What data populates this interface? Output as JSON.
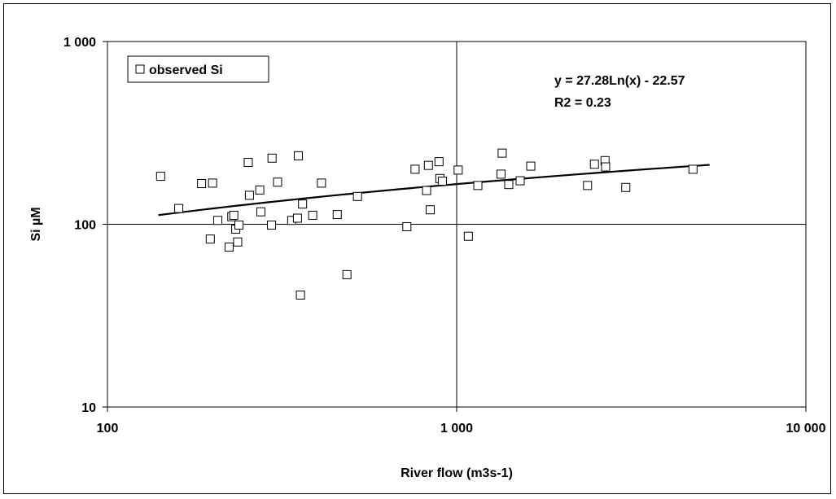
{
  "chart_data": {
    "type": "scatter",
    "title": "",
    "xlabel": "River flow  (m3s-1)",
    "ylabel": "Si  µM",
    "x_scale": "log",
    "y_scale": "log",
    "xlim": [
      100,
      10000
    ],
    "ylim": [
      10,
      1000
    ],
    "x_ticks": [
      100,
      1000,
      10000
    ],
    "y_ticks": [
      10,
      100,
      1000
    ],
    "x_tick_labels": [
      "100",
      "1 000",
      "10 000"
    ],
    "y_tick_labels": [
      "10",
      "100",
      "1 000"
    ],
    "grid": "major",
    "legend_position": "top-left",
    "legend": [
      {
        "label": "observed Si",
        "marker": "open-square"
      }
    ],
    "annotation": {
      "equation": "y = 27.28Ln(x) - 22.57",
      "r2": "R2 = 0.23"
    },
    "trendline": {
      "type": "logarithmic",
      "a": 27.28,
      "b": -22.57,
      "x_start": 140,
      "x_end": 5300,
      "color": "#000000"
    },
    "series": [
      {
        "name": "observed Si",
        "marker": "open-square",
        "color": "#000000",
        "points": [
          [
            142,
            183
          ],
          [
            160,
            122
          ],
          [
            186,
            167
          ],
          [
            197,
            83
          ],
          [
            200,
            168
          ],
          [
            207,
            105
          ],
          [
            223,
            75
          ],
          [
            227,
            110
          ],
          [
            230,
            112
          ],
          [
            233,
            94
          ],
          [
            236,
            80
          ],
          [
            238,
            99
          ],
          [
            253,
            218
          ],
          [
            255,
            144
          ],
          [
            273,
            154
          ],
          [
            275,
            117
          ],
          [
            295,
            99
          ],
          [
            296,
            230
          ],
          [
            307,
            170
          ],
          [
            337,
            105
          ],
          [
            350,
            108
          ],
          [
            352,
            237
          ],
          [
            357,
            41
          ],
          [
            362,
            129
          ],
          [
            387,
            112
          ],
          [
            410,
            168
          ],
          [
            455,
            113
          ],
          [
            485,
            53
          ],
          [
            520,
            142
          ],
          [
            720,
            97
          ],
          [
            760,
            200
          ],
          [
            820,
            153
          ],
          [
            830,
            210
          ],
          [
            840,
            120
          ],
          [
            890,
            220
          ],
          [
            895,
            178
          ],
          [
            910,
            172
          ],
          [
            1010,
            198
          ],
          [
            1080,
            86
          ],
          [
            1150,
            163
          ],
          [
            1340,
            188
          ],
          [
            1350,
            245
          ],
          [
            1410,
            165
          ],
          [
            1520,
            173
          ],
          [
            1630,
            208
          ],
          [
            2370,
            163
          ],
          [
            2480,
            213
          ],
          [
            2660,
            223
          ],
          [
            2670,
            206
          ],
          [
            3050,
            159
          ],
          [
            4750,
            200
          ]
        ]
      }
    ]
  }
}
